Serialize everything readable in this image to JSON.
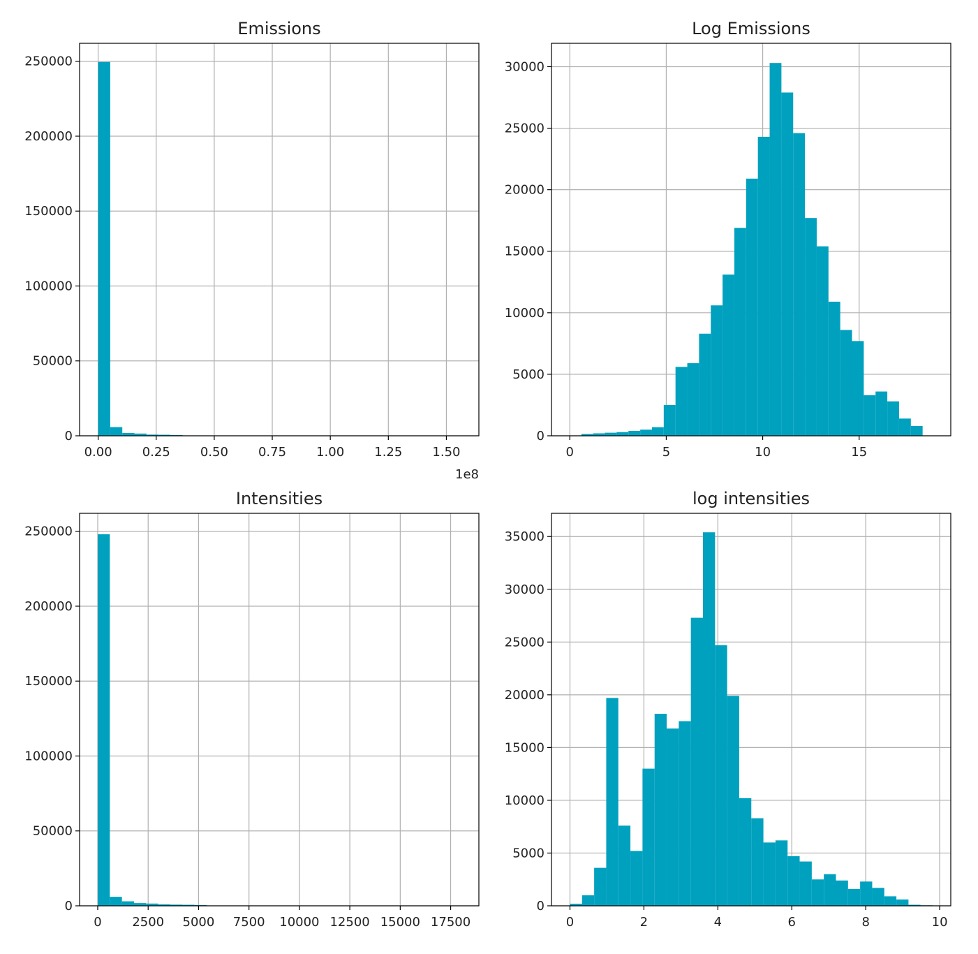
{
  "figure": {
    "colors": {
      "bar": "#00a1be",
      "grid": "#b0b0b0",
      "frame": "#000000",
      "background": "#ffffff"
    }
  },
  "chart_data": [
    {
      "type": "bar",
      "title": "Emissions",
      "xlabel": "",
      "ylabel": "",
      "x_offset_label": "1e8",
      "grid": true,
      "xlim": [
        -0.08,
        1.64
      ],
      "ylim": [
        0,
        262000
      ],
      "xticks": [
        0.0,
        0.25,
        0.5,
        0.75,
        1.0,
        1.25,
        1.5
      ],
      "xtick_labels": [
        "0.00",
        "0.25",
        "0.50",
        "0.75",
        "1.00",
        "1.25",
        "1.50"
      ],
      "yticks": [
        0,
        50000,
        100000,
        150000,
        200000,
        250000
      ],
      "ytick_labels": [
        "0",
        "50000",
        "100000",
        "150000",
        "200000",
        "250000"
      ],
      "bin_start": 0.0,
      "bin_width": 0.052,
      "values": [
        249500,
        5800,
        1900,
        1500,
        800,
        700,
        500,
        200,
        100,
        80,
        60,
        50,
        40,
        30,
        30,
        20,
        20,
        10,
        10,
        10,
        5,
        5,
        5,
        5,
        5,
        5,
        5,
        0,
        0,
        5
      ]
    },
    {
      "type": "bar",
      "title": "Log Emissions",
      "xlabel": "",
      "ylabel": "",
      "grid": true,
      "xlim": [
        -0.95,
        19.75
      ],
      "ylim": [
        0,
        31900
      ],
      "xticks": [
        0,
        5,
        10,
        15
      ],
      "xtick_labels": [
        "0",
        "5",
        "10",
        "15"
      ],
      "yticks": [
        0,
        5000,
        10000,
        15000,
        20000,
        25000,
        30000
      ],
      "ytick_labels": [
        "0",
        "5000",
        "10000",
        "15000",
        "20000",
        "25000",
        "30000"
      ],
      "bin_start": 0.6,
      "bin_width": 0.61,
      "values": [
        150,
        200,
        250,
        300,
        400,
        500,
        700,
        2500,
        5600,
        5900,
        8300,
        10600,
        13100,
        16900,
        20900,
        24300,
        30300,
        27900,
        24600,
        17700,
        15400,
        10900,
        8600,
        7700,
        3300,
        3600,
        2800,
        1400,
        800
      ]
    },
    {
      "type": "bar",
      "title": "Intensities",
      "xlabel": "",
      "ylabel": "",
      "grid": true,
      "xlim": [
        -900,
        18900
      ],
      "ylim": [
        0,
        262000
      ],
      "xticks": [
        0,
        2500,
        5000,
        7500,
        10000,
        12500,
        15000,
        17500
      ],
      "xtick_labels": [
        "0",
        "2500",
        "5000",
        "7500",
        "10000",
        "12500",
        "15000",
        "17500"
      ],
      "yticks": [
        0,
        50000,
        100000,
        150000,
        200000,
        250000
      ],
      "ytick_labels": [
        "0",
        "50000",
        "100000",
        "150000",
        "200000",
        "250000"
      ],
      "bin_start": 0,
      "bin_width": 600,
      "values": [
        248000,
        6000,
        3000,
        1800,
        1500,
        1000,
        800,
        700,
        500,
        200,
        100,
        80,
        60,
        50,
        40,
        30,
        30,
        20,
        20,
        10,
        10,
        10,
        5,
        5,
        5,
        5,
        5,
        5,
        5,
        5
      ]
    },
    {
      "type": "bar",
      "title": "log intensities",
      "xlabel": "",
      "ylabel": "",
      "grid": true,
      "xlim": [
        -0.5,
        10.3
      ],
      "ylim": [
        0,
        37200
      ],
      "xticks": [
        0,
        2,
        4,
        6,
        8,
        10
      ],
      "xtick_labels": [
        "0",
        "2",
        "4",
        "6",
        "8",
        "10"
      ],
      "yticks": [
        0,
        5000,
        10000,
        15000,
        20000,
        25000,
        30000,
        35000
      ],
      "ytick_labels": [
        "0",
        "5000",
        "10000",
        "15000",
        "20000",
        "25000",
        "30000",
        "35000"
      ],
      "bin_start": 0.0,
      "bin_width": 0.327,
      "values": [
        200,
        1000,
        3600,
        19700,
        7600,
        5200,
        13000,
        18200,
        16800,
        17500,
        27300,
        35400,
        24700,
        19900,
        10200,
        8300,
        6000,
        6200,
        4700,
        4200,
        2500,
        3000,
        2400,
        1600,
        2300,
        1700,
        900,
        600,
        100,
        50
      ]
    }
  ]
}
